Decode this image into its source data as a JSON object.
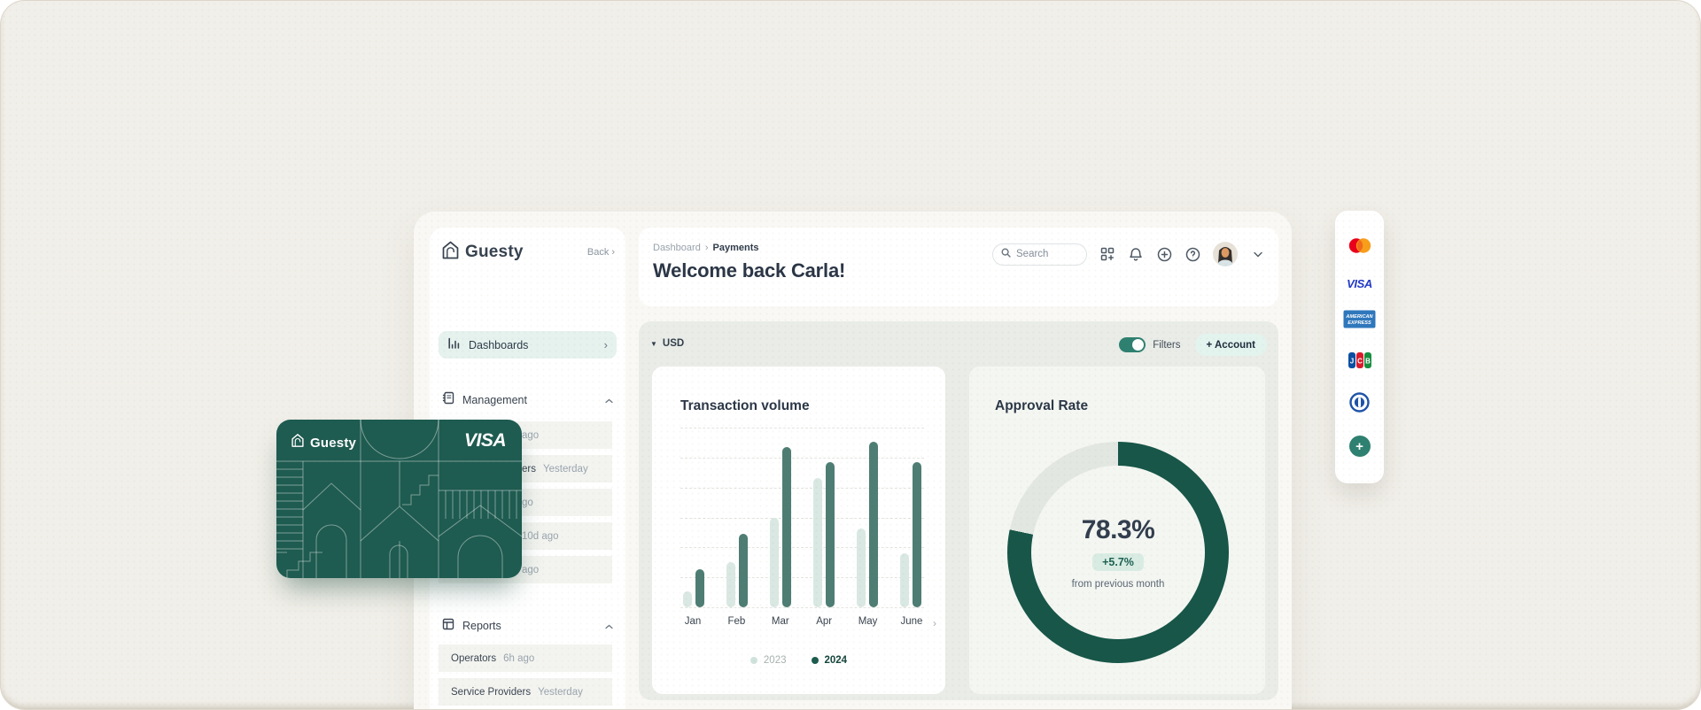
{
  "colors": {
    "page_bg": "#f1efe9",
    "window_bg": "#f9f8f4",
    "panel_bg": "#e9ece7",
    "ar_card_bg": "#f4f6f2",
    "row_bg": "#f3f4f0",
    "mint": "#e5f2ee",
    "btn_mint": "#e3f3ee",
    "badge_bg": "#d9ece3",
    "toggle": "#2e8070",
    "brand_teal": "#1e5b50",
    "bar_2023": "#d9e8e2",
    "bar_2024": "#4e7d73",
    "donut_teal": "#175648",
    "donut_rest": "#e3e7e2"
  },
  "icons": {
    "chevron_right": "›",
    "caret_down": "▼",
    "plus": "+"
  },
  "sidebar": {
    "logo_text": "Guesty",
    "back_label": "Back",
    "dashboards_label": "Dashboards",
    "management": {
      "title": "Management",
      "rows": [
        {
          "name": "",
          "time": "ago"
        },
        {
          "name": "ers",
          "time": "Yesterday"
        },
        {
          "name": "",
          "time": "go"
        },
        {
          "name": "",
          "time": "10d ago"
        },
        {
          "name": "",
          "time": "ago"
        }
      ]
    },
    "reports": {
      "title": "Reports",
      "rows": [
        {
          "name": "Operators",
          "time": "6h ago"
        },
        {
          "name": "Service Providers",
          "time": "Yesterday"
        }
      ]
    }
  },
  "header": {
    "breadcrumb": {
      "parent": "Dashboard",
      "separator": "›",
      "current": "Payments"
    },
    "welcome": "Welcome back Carla!",
    "search_placeholder": "Search"
  },
  "toolbar": {
    "currency": "USD",
    "filters_label": "Filters",
    "account_button": "+ Account"
  },
  "chart_data": [
    {
      "type": "bar",
      "title": "Transaction volume",
      "categories": [
        "Jan",
        "Feb",
        "Mar",
        "Apr",
        "May",
        "June"
      ],
      "series": [
        {
          "name": "2023",
          "values": [
            9,
            25,
            50,
            72,
            44,
            30
          ]
        },
        {
          "name": "2024",
          "values": [
            21,
            41,
            89,
            81,
            92,
            81
          ]
        }
      ],
      "ylim": [
        0,
        100
      ],
      "unit": "percent of plot height (no numeric axis labels shown)",
      "grid": "7 horizontal dashed gridlines",
      "legend_position": "bottom",
      "next_chevron": "›"
    },
    {
      "type": "pie",
      "variant": "donut",
      "title": "Approval Rate",
      "segments": [
        {
          "name": "approved",
          "value": 78.3
        },
        {
          "name": "remainder",
          "value": 21.7
        }
      ],
      "center_label": "78.3%",
      "delta_badge": "+5.7%",
      "delta_caption": "from previous month",
      "start_angle": "top, clockwise"
    }
  ],
  "visa_card": {
    "brand": "Guesty",
    "network": "VISA"
  },
  "payment_rail": {
    "logos": [
      "mastercard",
      "visa",
      "american-express",
      "jcb",
      "diners-club"
    ],
    "visa_label": "VISA",
    "amex_line1": "AMERICAN",
    "amex_line2": "EXPRESS",
    "jcb_letters": [
      "J",
      "C",
      "B"
    ],
    "add_label": "+"
  }
}
